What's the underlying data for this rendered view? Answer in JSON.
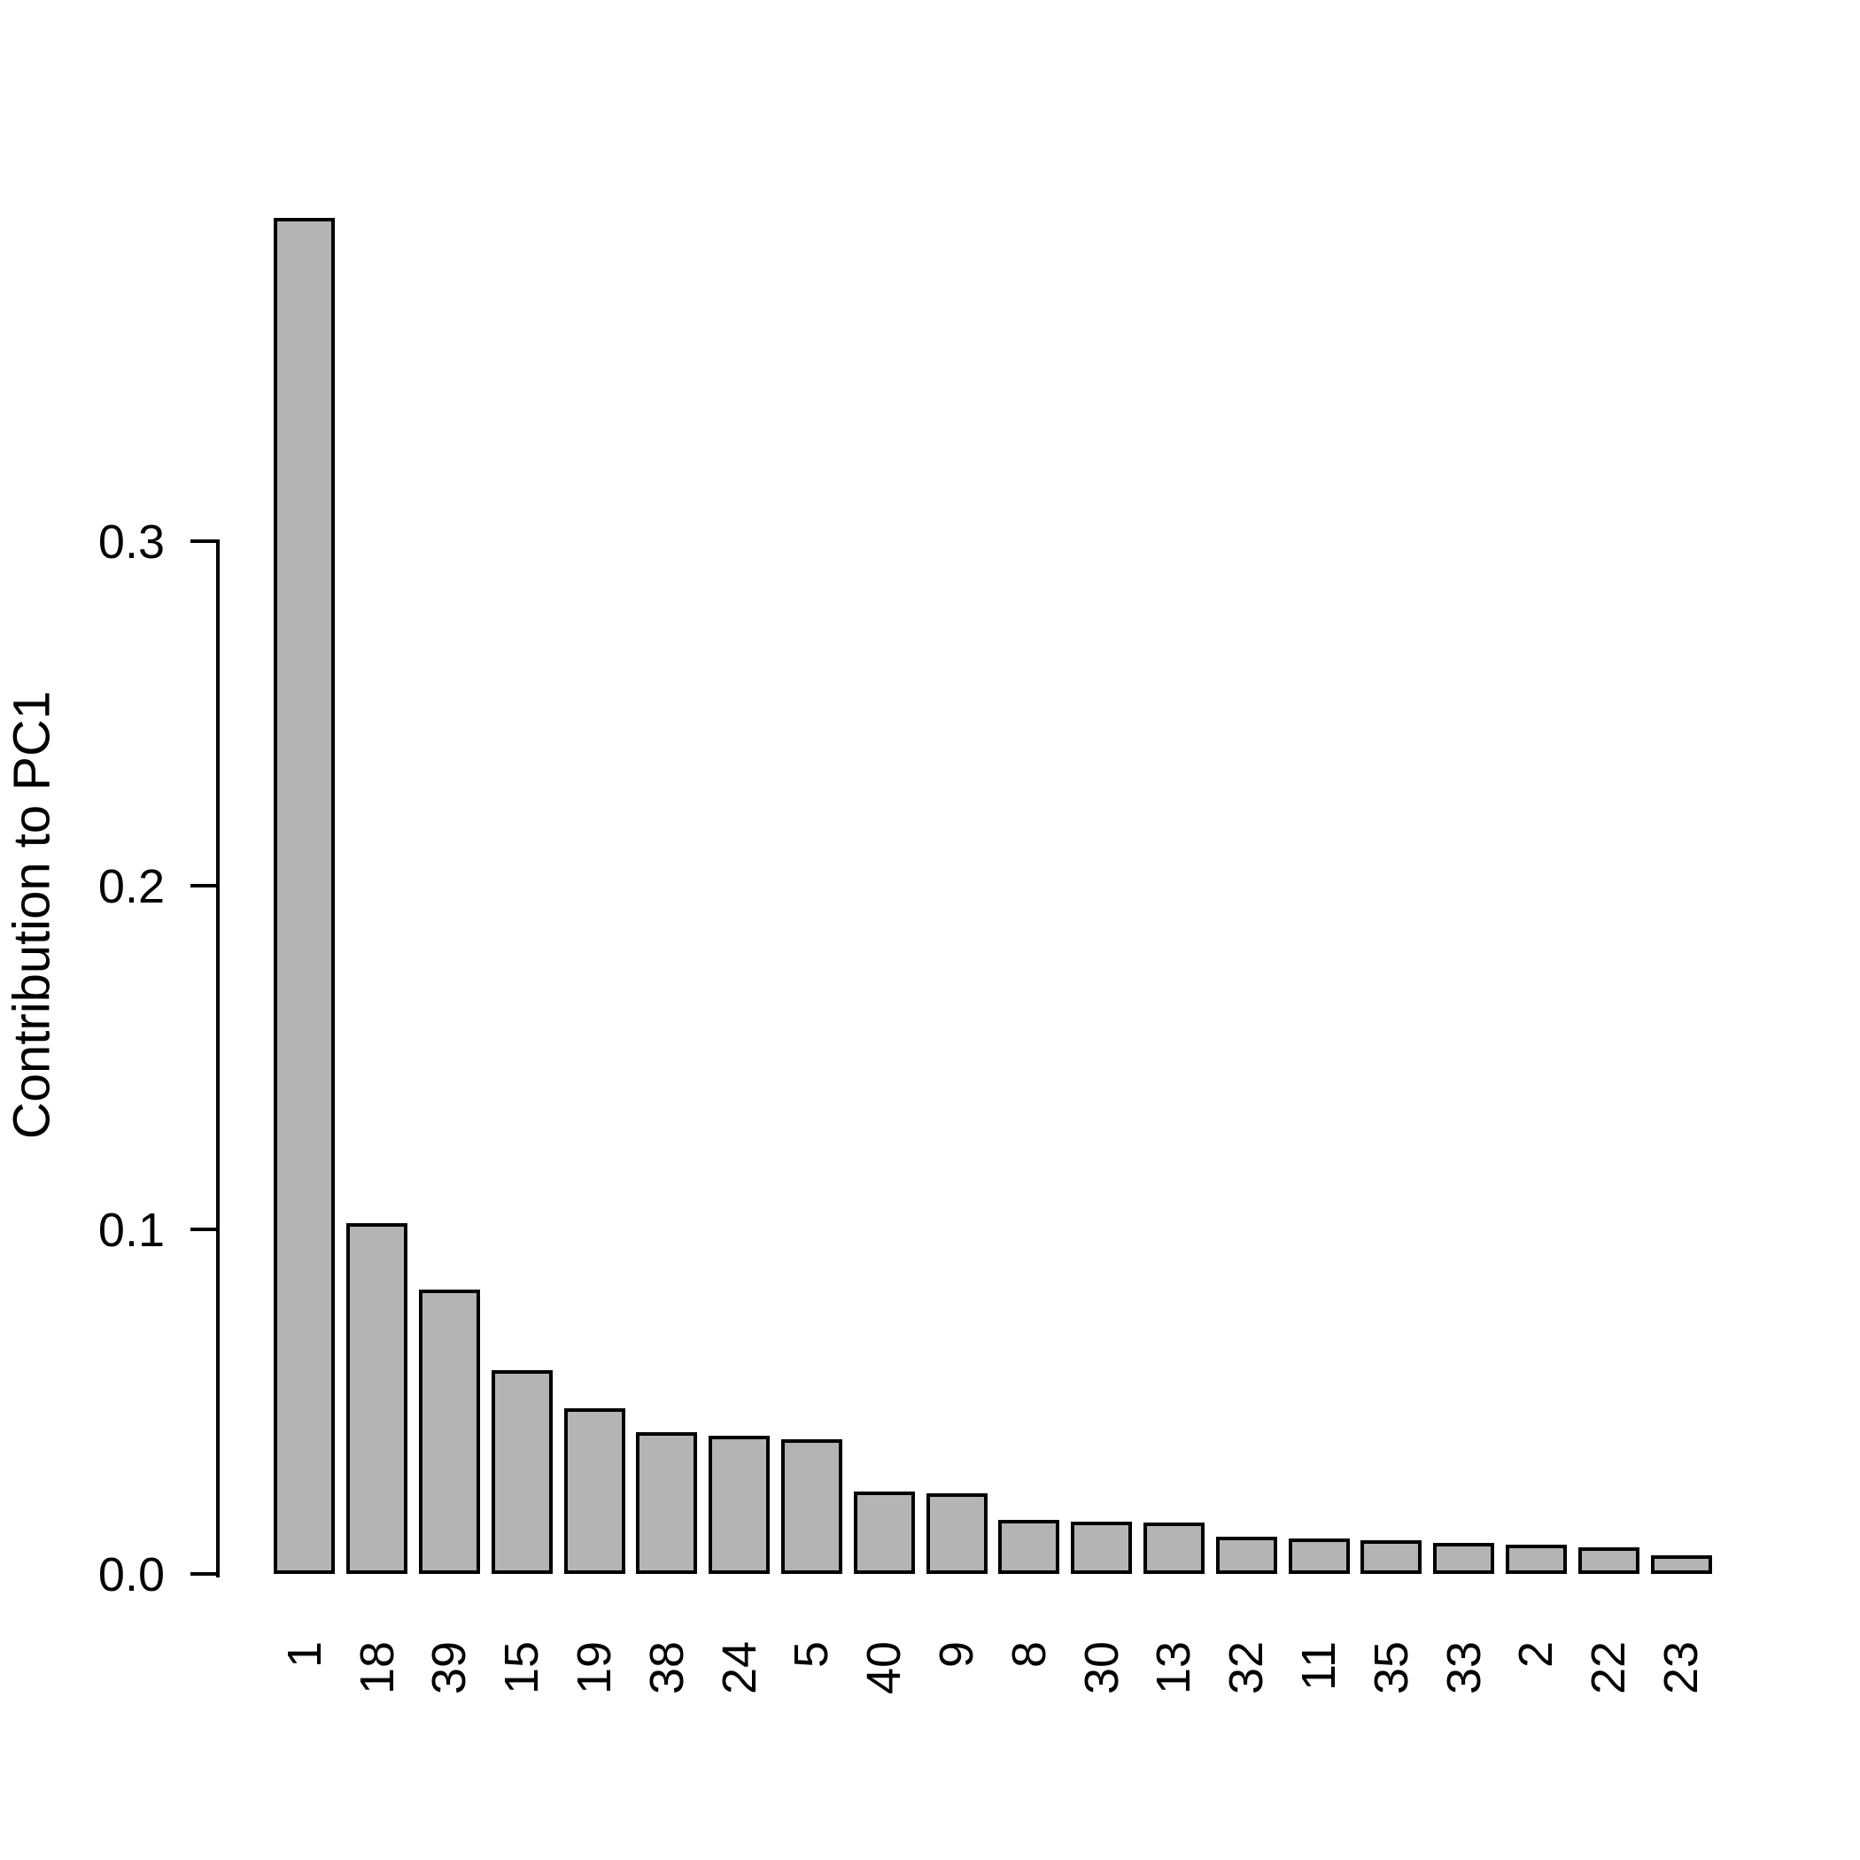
{
  "chart_data": {
    "type": "bar",
    "title": "",
    "xlabel": "",
    "ylabel": "Contribution to PC1",
    "categories": [
      "1",
      "18",
      "39",
      "15",
      "19",
      "38",
      "24",
      "5",
      "40",
      "9",
      "8",
      "30",
      "13",
      "32",
      "11",
      "35",
      "33",
      "2",
      "22",
      "23"
    ],
    "values": [
      0.394,
      0.102,
      0.0826,
      0.0593,
      0.0481,
      0.0411,
      0.0402,
      0.0391,
      0.0238,
      0.0234,
      0.0157,
      0.0153,
      0.0148,
      0.0107,
      0.0103,
      0.0099,
      0.0089,
      0.0085,
      0.0077,
      0.0054
    ],
    "ytick_labels": [
      "0.0",
      "0.1",
      "0.2",
      "0.3"
    ],
    "ytick_values": [
      0,
      0.1,
      0.2,
      0.3
    ],
    "axis_ylim": [
      0,
      0.3
    ],
    "grid": "off",
    "legend": "none",
    "bar_fill": "#b4b4b4",
    "bar_border": "#000000",
    "text_color": "#000000",
    "background": "#ffffff"
  }
}
